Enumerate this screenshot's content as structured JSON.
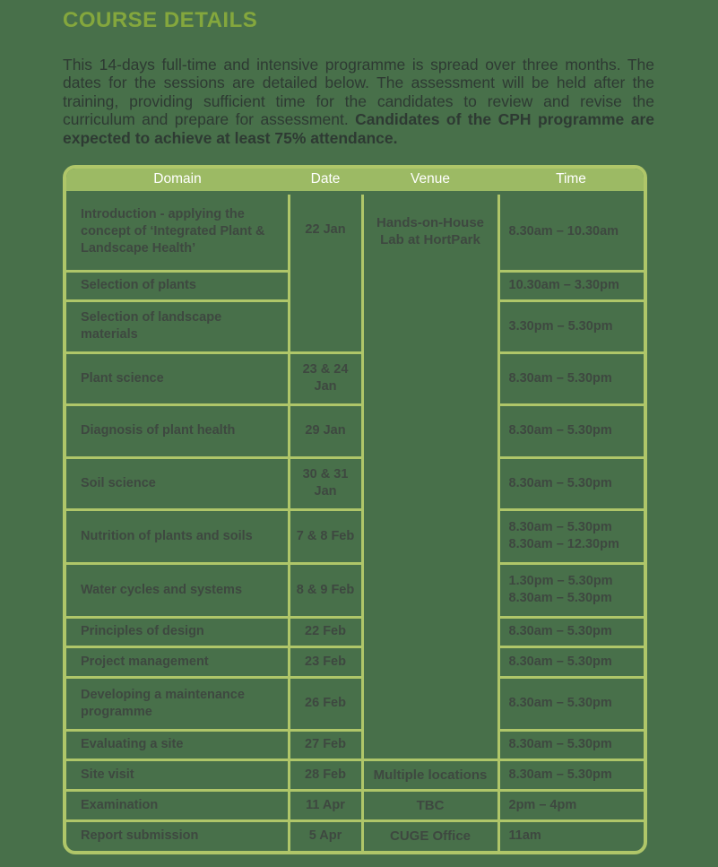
{
  "colors": {
    "page_bg": "#48704A",
    "title": "#84A73D",
    "body_text": "#2E3A33",
    "table_border": "#AFC669",
    "header_bg": "#9CBA64",
    "header_text": "#FFFFFF",
    "cell_text": "#3E4840"
  },
  "title": "COURSE DETAILS",
  "intro": {
    "text": "This 14-days full-time and intensive programme is spread over three months. The dates for the sessions are detailed below. The assessment will be held after the training, providing sufficient time for the candidates to review and revise the curriculum and prepare for assessment. ",
    "bold_text": "Candidates of the CPH programme are expected to achieve at least 75% attendance."
  },
  "table": {
    "headers": [
      "Domain",
      "Date",
      "Venue",
      "Time"
    ],
    "rows": [
      {
        "domain": "Introduction - applying the concept of ‘Integrated Plant & Landscape Health’",
        "date": "22 Jan",
        "dateRowspan": 3,
        "venue": "Hands-on-House Lab at HortPark",
        "venueRowspan": 12,
        "time": [
          "8.30am – 10.30am"
        ]
      },
      {
        "domain": "Selection of plants",
        "date": null,
        "venue": null,
        "time": [
          "10.30am – 3.30pm"
        ]
      },
      {
        "domain": "Selection of landscape materials",
        "date": null,
        "venue": null,
        "time": [
          "3.30pm – 5.30pm"
        ]
      },
      {
        "domain": "Plant science",
        "date": "23 & 24 Jan",
        "venue": null,
        "time": [
          "8.30am – 5.30pm"
        ]
      },
      {
        "domain": "Diagnosis of plant health",
        "date": "29 Jan",
        "venue": null,
        "time": [
          "8.30am – 5.30pm"
        ]
      },
      {
        "domain": "Soil science",
        "date": "30 & 31 Jan",
        "venue": null,
        "time": [
          "8.30am – 5.30pm"
        ]
      },
      {
        "domain": "Nutrition of plants and soils",
        "date": "7 & 8 Feb",
        "venue": null,
        "time": [
          "8.30am – 5.30pm",
          "8.30am – 12.30pm"
        ]
      },
      {
        "domain": "Water cycles and systems",
        "date": "8 & 9 Feb",
        "venue": null,
        "time": [
          "1.30pm – 5.30pm",
          "8.30am – 5.30pm"
        ]
      },
      {
        "domain": "Principles of design",
        "date": "22 Feb",
        "venue": null,
        "time": [
          "8.30am – 5.30pm"
        ]
      },
      {
        "domain": "Project management",
        "date": "23 Feb",
        "venue": null,
        "time": [
          "8.30am – 5.30pm"
        ]
      },
      {
        "domain": "Developing a maintenance programme",
        "date": "26 Feb",
        "venue": null,
        "time": [
          "8.30am – 5.30pm"
        ]
      },
      {
        "domain": "Evaluating a site",
        "date": "27 Feb",
        "venue": null,
        "time": [
          "8.30am – 5.30pm"
        ]
      },
      {
        "domain": "Site visit",
        "date": "28 Feb",
        "venue": "Multiple locations",
        "time": [
          "8.30am – 5.30pm"
        ]
      },
      {
        "domain": "Examination",
        "date": "11 Apr",
        "venue": "TBC",
        "time": [
          "2pm – 4pm"
        ]
      },
      {
        "domain": "Report submission",
        "date": "5 Apr",
        "venue": "CUGE Office",
        "time": [
          "11am"
        ]
      }
    ]
  }
}
